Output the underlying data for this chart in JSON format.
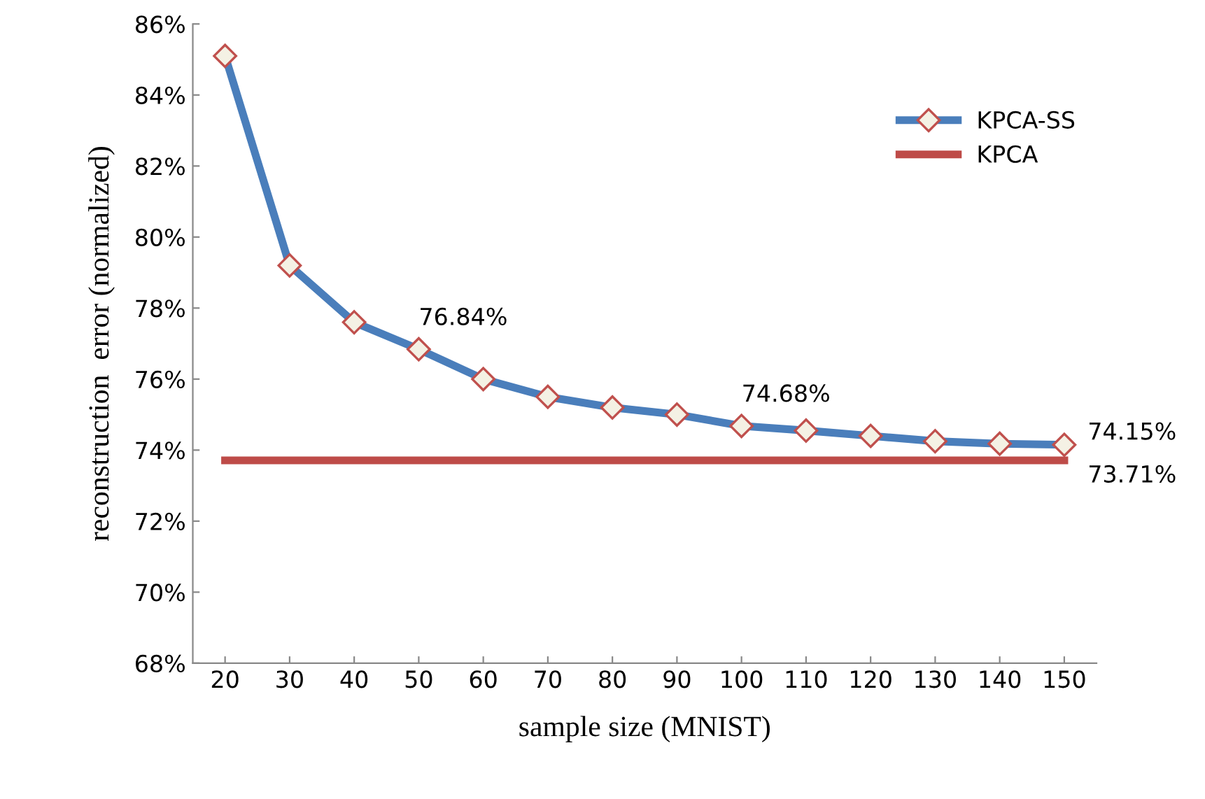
{
  "chart_data": {
    "type": "line",
    "xlabel": "sample size (MNIST)",
    "ylabel": "reconstruction  error (normalized)",
    "categories": [
      "20",
      "30",
      "40",
      "50",
      "60",
      "70",
      "80",
      "90",
      "100",
      "110",
      "120",
      "130",
      "140",
      "150"
    ],
    "series": [
      {
        "name": "KPCA-SS",
        "color": "#4a7ebb",
        "marker": "diamond",
        "values": [
          85.1,
          79.2,
          77.6,
          76.84,
          76.0,
          75.5,
          75.2,
          75.0,
          74.68,
          74.55,
          74.4,
          74.25,
          74.18,
          74.15
        ],
        "value_labels": [
          null,
          null,
          null,
          "76.84%",
          null,
          null,
          null,
          null,
          "74.68%",
          null,
          null,
          null,
          null,
          "74.15%"
        ]
      },
      {
        "name": "KPCA",
        "color": "#be4b48",
        "marker": "none",
        "values": [
          73.71,
          73.71,
          73.71,
          73.71,
          73.71,
          73.71,
          73.71,
          73.71,
          73.71,
          73.71,
          73.71,
          73.71,
          73.71,
          73.71
        ],
        "value_labels": [
          null,
          null,
          null,
          null,
          null,
          null,
          null,
          null,
          null,
          null,
          null,
          null,
          null,
          "73.71%"
        ]
      }
    ],
    "ylim": [
      68,
      86
    ],
    "yticks": [
      {
        "value": 68,
        "label": "68%"
      },
      {
        "value": 70,
        "label": "70%"
      },
      {
        "value": 72,
        "label": "72%"
      },
      {
        "value": 74,
        "label": "74%"
      },
      {
        "value": 76,
        "label": "76%"
      },
      {
        "value": 78,
        "label": "78%"
      },
      {
        "value": 80,
        "label": "80%"
      },
      {
        "value": 82,
        "label": "82%"
      },
      {
        "value": 84,
        "label": "84%"
      },
      {
        "value": 86,
        "label": "86%"
      }
    ],
    "grid": false,
    "legend": "right",
    "line_style": "solid"
  }
}
